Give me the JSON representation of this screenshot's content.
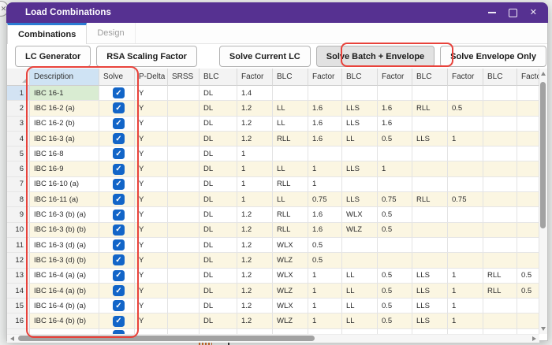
{
  "window": {
    "title": "Load Combinations",
    "controls": {
      "minimize": "minimize",
      "maximize": "maximize",
      "close": "close"
    }
  },
  "tabs": [
    {
      "label": "Combinations",
      "active": true
    },
    {
      "label": "Design",
      "active": false
    }
  ],
  "toolbar": {
    "left": [
      {
        "label": "LC Generator"
      },
      {
        "label": "RSA Scaling Factor"
      }
    ],
    "right": [
      {
        "label": "Solve Current LC",
        "highlighted": false
      },
      {
        "label": "Solve Batch + Envelope",
        "highlighted": true
      },
      {
        "label": "Solve Envelope Only",
        "highlighted": false
      }
    ]
  },
  "table": {
    "columns": [
      "Description",
      "Solve",
      "P-Delta",
      "SRSS",
      "BLC",
      "Factor",
      "BLC",
      "Factor",
      "BLC",
      "Factor",
      "BLC",
      "Factor",
      "BLC",
      "Factor"
    ],
    "rows": [
      {
        "num": "1",
        "description": "IBC 16-1",
        "solve": true,
        "p_delta": "Y",
        "srss": "",
        "pairs": [
          "DL",
          "1.4",
          "",
          "",
          "",
          "",
          "",
          "",
          "",
          ""
        ]
      },
      {
        "num": "2",
        "description": "IBC 16-2 (a)",
        "solve": true,
        "p_delta": "Y",
        "srss": "",
        "pairs": [
          "DL",
          "1.2",
          "LL",
          "1.6",
          "LLS",
          "1.6",
          "RLL",
          "0.5",
          "",
          ""
        ]
      },
      {
        "num": "3",
        "description": "IBC 16-2 (b)",
        "solve": true,
        "p_delta": "Y",
        "srss": "",
        "pairs": [
          "DL",
          "1.2",
          "LL",
          "1.6",
          "LLS",
          "1.6",
          "",
          "",
          "",
          ""
        ]
      },
      {
        "num": "4",
        "description": "IBC 16-3 (a)",
        "solve": true,
        "p_delta": "Y",
        "srss": "",
        "pairs": [
          "DL",
          "1.2",
          "RLL",
          "1.6",
          "LL",
          "0.5",
          "LLS",
          "1",
          "",
          ""
        ]
      },
      {
        "num": "5",
        "description": "IBC 16-8",
        "solve": true,
        "p_delta": "Y",
        "srss": "",
        "pairs": [
          "DL",
          "1",
          "",
          "",
          "",
          "",
          "",
          "",
          "",
          ""
        ]
      },
      {
        "num": "6",
        "description": "IBC 16-9",
        "solve": true,
        "p_delta": "Y",
        "srss": "",
        "pairs": [
          "DL",
          "1",
          "LL",
          "1",
          "LLS",
          "1",
          "",
          "",
          "",
          ""
        ]
      },
      {
        "num": "7",
        "description": "IBC 16-10 (a)",
        "solve": true,
        "p_delta": "Y",
        "srss": "",
        "pairs": [
          "DL",
          "1",
          "RLL",
          "1",
          "",
          "",
          "",
          "",
          "",
          ""
        ]
      },
      {
        "num": "8",
        "description": "IBC 16-11 (a)",
        "solve": true,
        "p_delta": "Y",
        "srss": "",
        "pairs": [
          "DL",
          "1",
          "LL",
          "0.75",
          "LLS",
          "0.75",
          "RLL",
          "0.75",
          "",
          ""
        ]
      },
      {
        "num": "9",
        "description": "IBC 16-3 (b) (a)",
        "solve": true,
        "p_delta": "Y",
        "srss": "",
        "pairs": [
          "DL",
          "1.2",
          "RLL",
          "1.6",
          "WLX",
          "0.5",
          "",
          "",
          "",
          ""
        ]
      },
      {
        "num": "10",
        "description": "IBC 16-3 (b) (b)",
        "solve": true,
        "p_delta": "Y",
        "srss": "",
        "pairs": [
          "DL",
          "1.2",
          "RLL",
          "1.6",
          "WLZ",
          "0.5",
          "",
          "",
          "",
          ""
        ]
      },
      {
        "num": "11",
        "description": "IBC 16-3 (d) (a)",
        "solve": true,
        "p_delta": "Y",
        "srss": "",
        "pairs": [
          "DL",
          "1.2",
          "WLX",
          "0.5",
          "",
          "",
          "",
          "",
          "",
          ""
        ]
      },
      {
        "num": "12",
        "description": "IBC 16-3 (d) (b)",
        "solve": true,
        "p_delta": "Y",
        "srss": "",
        "pairs": [
          "DL",
          "1.2",
          "WLZ",
          "0.5",
          "",
          "",
          "",
          "",
          "",
          ""
        ]
      },
      {
        "num": "13",
        "description": "IBC 16-4 (a) (a)",
        "solve": true,
        "p_delta": "Y",
        "srss": "",
        "pairs": [
          "DL",
          "1.2",
          "WLX",
          "1",
          "LL",
          "0.5",
          "LLS",
          "1",
          "RLL",
          "0.5"
        ]
      },
      {
        "num": "14",
        "description": "IBC 16-4 (a) (b)",
        "solve": true,
        "p_delta": "Y",
        "srss": "",
        "pairs": [
          "DL",
          "1.2",
          "WLZ",
          "1",
          "LL",
          "0.5",
          "LLS",
          "1",
          "RLL",
          "0.5"
        ]
      },
      {
        "num": "15",
        "description": "IBC 16-4 (b) (a)",
        "solve": true,
        "p_delta": "Y",
        "srss": "",
        "pairs": [
          "DL",
          "1.2",
          "WLX",
          "1",
          "LL",
          "0.5",
          "LLS",
          "1",
          "",
          ""
        ]
      },
      {
        "num": "16",
        "description": "IBC 16-4 (b) (b)",
        "solve": true,
        "p_delta": "Y",
        "srss": "",
        "pairs": [
          "DL",
          "1.2",
          "WLZ",
          "1",
          "LL",
          "0.5",
          "LLS",
          "1",
          "",
          ""
        ]
      }
    ]
  },
  "annotations": {
    "color": "#e8423b",
    "items": [
      "highlight-solve-batch-envelope-button",
      "highlight-description-solve-columns"
    ]
  },
  "colors": {
    "titlebar": "#563191",
    "tab_accent": "#2b7cd3",
    "checkbox": "#1265c8",
    "row_alt": "#fbf6e2",
    "selected_desc_cell": "#d9ecd2",
    "selected_rownum_cell": "#d3e3f3",
    "header_desc_cell": "#cfe3f4",
    "annotation_red": "#e8423b"
  }
}
